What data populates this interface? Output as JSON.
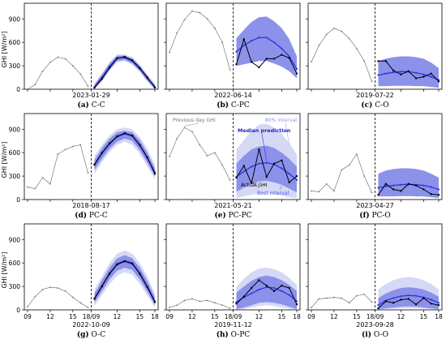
{
  "figure": {
    "ylabel": "GHI [W/m²]",
    "yticks": [
      0,
      300,
      600,
      900
    ],
    "xtick_labels": [
      "09",
      "12",
      "15",
      "18/09",
      "12",
      "15",
      "18"
    ],
    "ylim": [
      0,
      1100
    ]
  },
  "annotations": {
    "prev_day": "Previous day GHI",
    "interval80": "80% interval",
    "median": "Median prediction",
    "actual": "Actual GHI",
    "best": "Best interval"
  },
  "colors": {
    "outer_band": "#d6d9f5",
    "inner_band": "#7f84e8",
    "median": "#2f35e0",
    "actual": "#000000",
    "history": "#7a7a7a",
    "label_80": "#8f93ee",
    "label_median": "#1f25cc",
    "label_best": "#4a50e6"
  },
  "chart_data": [
    {
      "type": "line",
      "panel_tag": "(a)",
      "panel_name": "C-C",
      "date": "2023-01-29",
      "history": [
        0,
        60,
        230,
        345,
        410,
        390,
        300,
        195,
        40
      ],
      "actual": [
        20,
        135,
        275,
        395,
        415,
        370,
        270,
        150,
        20
      ],
      "median": [
        30,
        150,
        290,
        400,
        405,
        360,
        265,
        140,
        30
      ],
      "inner_lo": [
        5,
        110,
        250,
        360,
        375,
        330,
        235,
        110,
        5
      ],
      "inner_hi": [
        55,
        190,
        330,
        430,
        430,
        395,
        300,
        175,
        55
      ],
      "outer_lo": [
        0,
        95,
        235,
        345,
        360,
        315,
        220,
        95,
        0
      ],
      "outer_hi": [
        75,
        205,
        345,
        445,
        445,
        410,
        315,
        190,
        70
      ]
    },
    {
      "type": "line",
      "panel_tag": "(b)",
      "panel_name": "C-PC",
      "date": "2022-06-14",
      "history": [
        470,
        720,
        890,
        1000,
        980,
        900,
        780,
        600,
        250
      ],
      "actual": [
        320,
        640,
        350,
        280,
        390,
        390,
        440,
        400,
        200
      ],
      "median": [
        480,
        560,
        620,
        660,
        660,
        600,
        520,
        420,
        260
      ],
      "inner_lo": [
        300,
        320,
        340,
        360,
        360,
        330,
        290,
        230,
        140
      ],
      "inner_hi": [
        650,
        760,
        860,
        920,
        930,
        870,
        780,
        640,
        420
      ],
      "outer_lo": [
        300,
        320,
        340,
        360,
        360,
        330,
        290,
        230,
        140
      ],
      "outer_hi": [
        650,
        760,
        860,
        920,
        930,
        870,
        780,
        640,
        420
      ]
    },
    {
      "type": "line",
      "panel_tag": "(c)",
      "panel_name": "C-O",
      "date": "2019-07-22",
      "history": [
        350,
        560,
        700,
        780,
        740,
        650,
        520,
        360,
        100
      ],
      "actual": [
        360,
        360,
        240,
        190,
        230,
        140,
        160,
        200,
        100
      ],
      "median": [
        180,
        200,
        215,
        225,
        225,
        210,
        190,
        160,
        120
      ],
      "inner_lo": [
        40,
        40,
        45,
        45,
        45,
        40,
        40,
        30,
        20
      ],
      "inner_hi": [
        360,
        390,
        410,
        420,
        420,
        410,
        390,
        340,
        270
      ],
      "outer_lo": [
        40,
        40,
        45,
        45,
        45,
        40,
        40,
        30,
        20
      ],
      "outer_hi": [
        360,
        390,
        410,
        420,
        420,
        410,
        390,
        340,
        270
      ]
    },
    {
      "type": "line",
      "panel_tag": "(d)",
      "panel_name": "PC-C",
      "date": "2018-08-17",
      "history": [
        160,
        140,
        280,
        200,
        580,
        640,
        680,
        700,
        340
      ],
      "actual": [
        450,
        600,
        720,
        810,
        850,
        820,
        700,
        540,
        330
      ],
      "median": [
        440,
        590,
        710,
        800,
        840,
        810,
        690,
        530,
        350
      ],
      "inner_lo": [
        380,
        520,
        650,
        740,
        780,
        750,
        630,
        470,
        300
      ],
      "inner_hi": [
        510,
        660,
        780,
        860,
        880,
        860,
        760,
        600,
        400
      ],
      "outer_lo": [
        330,
        480,
        610,
        700,
        740,
        700,
        580,
        420,
        260
      ],
      "outer_hi": [
        560,
        700,
        820,
        900,
        920,
        900,
        800,
        650,
        450
      ]
    },
    {
      "type": "line",
      "panel_tag": "(e)",
      "panel_name": "PC-PC",
      "date": "2021-05-21",
      "history": [
        550,
        780,
        920,
        870,
        700,
        560,
        600,
        440,
        250
      ],
      "actual": [
        280,
        430,
        210,
        640,
        290,
        460,
        500,
        220,
        300
      ],
      "median": [
        290,
        360,
        420,
        460,
        470,
        450,
        400,
        330,
        250
      ],
      "inner_lo": [
        100,
        150,
        200,
        230,
        240,
        220,
        190,
        140,
        90
      ],
      "inner_hi": [
        460,
        560,
        640,
        680,
        690,
        660,
        600,
        520,
        420
      ],
      "outer_lo": [
        20,
        40,
        60,
        80,
        80,
        70,
        50,
        30,
        20
      ],
      "outer_hi": [
        640,
        760,
        880,
        960,
        970,
        920,
        840,
        720,
        580
      ]
    },
    {
      "type": "line",
      "panel_tag": "(f)",
      "panel_name": "PC-O",
      "date": "2023-04-27",
      "history": [
        110,
        100,
        200,
        110,
        380,
        440,
        580,
        300,
        90
      ],
      "actual": [
        60,
        200,
        130,
        110,
        200,
        180,
        130,
        70,
        60
      ],
      "median": [
        150,
        170,
        180,
        190,
        195,
        190,
        180,
        160,
        130
      ],
      "inner_lo": [
        40,
        40,
        40,
        45,
        45,
        40,
        40,
        30,
        20
      ],
      "inner_hi": [
        330,
        370,
        390,
        400,
        400,
        390,
        370,
        330,
        280
      ],
      "outer_lo": [
        40,
        40,
        40,
        45,
        45,
        40,
        40,
        30,
        20
      ],
      "outer_hi": [
        330,
        370,
        390,
        400,
        400,
        390,
        370,
        330,
        280
      ]
    },
    {
      "type": "line",
      "panel_tag": "(g)",
      "panel_name": "O-C",
      "date": "2022-10-09",
      "history": [
        40,
        170,
        260,
        290,
        280,
        240,
        160,
        90,
        30
      ],
      "actual": [
        140,
        300,
        460,
        580,
        620,
        590,
        460,
        290,
        100
      ],
      "median": [
        150,
        310,
        470,
        590,
        630,
        600,
        470,
        300,
        110
      ],
      "inner_lo": [
        90,
        240,
        390,
        500,
        540,
        510,
        390,
        230,
        60
      ],
      "inner_hi": [
        210,
        380,
        540,
        660,
        700,
        660,
        540,
        370,
        160
      ],
      "outer_lo": [
        50,
        190,
        330,
        440,
        480,
        450,
        330,
        180,
        30
      ],
      "outer_hi": [
        260,
        430,
        600,
        720,
        760,
        720,
        600,
        430,
        210
      ]
    },
    {
      "type": "line",
      "panel_tag": "(h)",
      "panel_name": "O-PC",
      "date": "2019-11-12",
      "history": [
        30,
        60,
        120,
        140,
        110,
        120,
        90,
        60,
        20
      ],
      "actual": [
        80,
        170,
        280,
        380,
        310,
        240,
        310,
        280,
        70
      ],
      "median": [
        100,
        160,
        210,
        260,
        290,
        280,
        240,
        190,
        110
      ],
      "inner_lo": [
        10,
        30,
        60,
        90,
        100,
        90,
        70,
        40,
        10
      ],
      "inner_hi": [
        220,
        300,
        370,
        420,
        440,
        420,
        380,
        320,
        240
      ],
      "outer_lo": [
        5,
        10,
        30,
        50,
        60,
        50,
        30,
        15,
        5
      ],
      "outer_hi": [
        300,
        400,
        480,
        530,
        540,
        520,
        480,
        410,
        320
      ]
    },
    {
      "type": "line",
      "panel_tag": "(i)",
      "panel_name": "O-O",
      "date": "2023-09-28",
      "history": [
        30,
        140,
        150,
        160,
        150,
        90,
        180,
        200,
        100
      ],
      "actual": [
        20,
        110,
        90,
        130,
        140,
        70,
        150,
        80,
        60
      ],
      "median": [
        60,
        120,
        150,
        175,
        185,
        180,
        160,
        130,
        90
      ],
      "inner_lo": [
        10,
        20,
        30,
        40,
        45,
        40,
        30,
        20,
        10
      ],
      "inner_hi": [
        150,
        210,
        250,
        280,
        290,
        280,
        260,
        220,
        170
      ],
      "outer_lo": [
        5,
        10,
        15,
        20,
        20,
        20,
        15,
        10,
        5
      ],
      "outer_hi": [
        260,
        330,
        380,
        410,
        420,
        410,
        380,
        330,
        260
      ]
    }
  ]
}
